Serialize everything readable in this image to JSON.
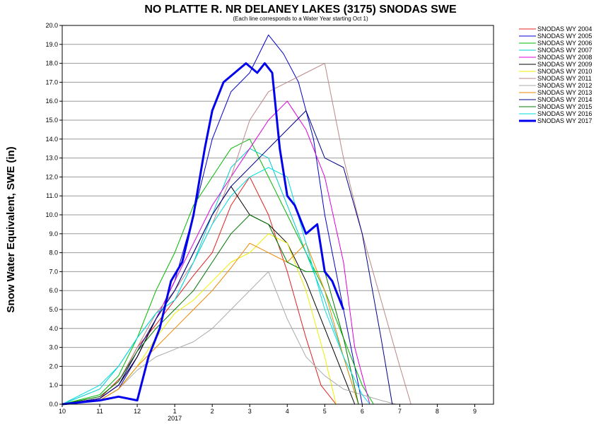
{
  "chart_data": {
    "type": "line",
    "title": "NO PLATTE R. NR DELANEY LAKES (3175) SNODAS SWE",
    "subtitle": "(Each line corresponds to a Water Year starting Oct 1)",
    "ylabel": "Snow Water Equivalent, SWE (in)",
    "xlabel": "",
    "x_unit": "months since Oct 1",
    "xlim": [
      0,
      11.5
    ],
    "ylim": [
      0,
      20
    ],
    "x_ticks": [
      {
        "x": 0,
        "label": "10"
      },
      {
        "x": 1,
        "label": "11"
      },
      {
        "x": 2,
        "label": "12"
      },
      {
        "x": 3,
        "label": "1"
      },
      {
        "x": 4,
        "label": "2"
      },
      {
        "x": 5,
        "label": "3"
      },
      {
        "x": 6,
        "label": "4"
      },
      {
        "x": 7,
        "label": "5"
      },
      {
        "x": 8,
        "label": "6"
      },
      {
        "x": 9,
        "label": "7"
      },
      {
        "x": 10,
        "label": "8"
      },
      {
        "x": 11,
        "label": "9"
      }
    ],
    "x_sublabel": {
      "x": 3,
      "label": "2017"
    },
    "y_ticks": [
      "0.0",
      "1.0",
      "2.0",
      "3.0",
      "4.0",
      "5.0",
      "6.0",
      "7.0",
      "8.0",
      "9.0",
      "10.0",
      "11.0",
      "12.0",
      "13.0",
      "14.0",
      "15.0",
      "16.0",
      "17.0",
      "18.0",
      "19.0",
      "20.0"
    ],
    "grid": true,
    "legend_position": "top-right-outside",
    "series": [
      {
        "name": "SNODAS WY 2004",
        "color": "#e02020",
        "width": 1,
        "x": [
          0.0,
          1.0,
          1.6,
          2.0,
          2.5,
          3.0,
          3.5,
          4.0,
          4.5,
          5.0,
          5.5,
          6.0,
          6.5,
          6.9,
          7.3
        ],
        "y": [
          0.0,
          0.3,
          1.5,
          3.0,
          4.2,
          5.5,
          6.8,
          8.0,
          10.5,
          12.0,
          10.0,
          7.0,
          3.5,
          1.0,
          0.0
        ]
      },
      {
        "name": "SNODAS WY 2005",
        "color": "#0000cc",
        "width": 1,
        "x": [
          0.0,
          1.0,
          1.5,
          2.0,
          2.5,
          3.0,
          3.5,
          4.0,
          4.5,
          5.0,
          5.5,
          5.9,
          6.3,
          6.7,
          7.0,
          7.4,
          7.8,
          8.0
        ],
        "y": [
          0.0,
          0.2,
          0.8,
          2.5,
          4.5,
          6.5,
          10.0,
          14.0,
          16.5,
          17.5,
          19.5,
          18.5,
          17.0,
          14.0,
          10.0,
          6.0,
          2.0,
          0.0
        ]
      },
      {
        "name": "SNODAS WY 2006",
        "color": "#00bb00",
        "width": 1,
        "x": [
          0.0,
          1.0,
          1.5,
          2.0,
          2.5,
          3.0,
          3.5,
          4.0,
          4.5,
          5.0,
          5.5,
          6.0,
          6.5,
          7.0,
          7.5,
          8.0,
          8.3
        ],
        "y": [
          0.0,
          0.5,
          1.5,
          3.5,
          6.0,
          8.0,
          10.5,
          12.0,
          13.5,
          14.0,
          12.0,
          10.0,
          8.0,
          6.0,
          3.5,
          1.0,
          0.0
        ]
      },
      {
        "name": "SNODAS WY 2007",
        "color": "#00cccc",
        "width": 1,
        "x": [
          0.0,
          1.0,
          1.5,
          2.0,
          2.5,
          3.0,
          3.5,
          4.0,
          4.5,
          5.0,
          5.5,
          6.0,
          6.5,
          7.0,
          7.5,
          7.9
        ],
        "y": [
          0.0,
          0.8,
          2.0,
          3.5,
          4.8,
          5.5,
          7.5,
          10.0,
          12.5,
          13.5,
          13.0,
          10.5,
          8.0,
          5.5,
          2.5,
          0.0
        ]
      },
      {
        "name": "SNODAS WY 2008",
        "color": "#dd00dd",
        "width": 1,
        "x": [
          0.0,
          1.0,
          1.5,
          2.0,
          2.5,
          3.0,
          3.5,
          4.0,
          4.5,
          5.0,
          5.5,
          6.0,
          6.5,
          7.0,
          7.5,
          7.8,
          8.2
        ],
        "y": [
          0.0,
          0.3,
          1.0,
          2.5,
          4.5,
          6.5,
          8.5,
          10.5,
          12.0,
          13.5,
          15.0,
          16.0,
          14.5,
          12.0,
          7.5,
          3.0,
          0.0
        ]
      },
      {
        "name": "SNODAS WY 2009",
        "color": "#000000",
        "width": 1,
        "x": [
          0.0,
          1.0,
          1.5,
          2.0,
          2.5,
          3.0,
          3.5,
          4.0,
          4.5,
          5.0,
          5.5,
          6.0,
          6.5,
          7.0,
          7.5,
          7.8
        ],
        "y": [
          0.0,
          0.3,
          1.0,
          2.5,
          4.5,
          6.0,
          8.0,
          10.0,
          11.5,
          10.0,
          9.5,
          8.5,
          6.5,
          4.0,
          1.5,
          0.0
        ]
      },
      {
        "name": "SNODAS WY 2010",
        "color": "#eeee00",
        "width": 1,
        "x": [
          0.0,
          1.0,
          1.5,
          2.0,
          2.5,
          3.0,
          3.5,
          4.0,
          4.5,
          5.0,
          5.5,
          6.0,
          6.5,
          7.0,
          7.3
        ],
        "y": [
          0.0,
          0.2,
          0.8,
          2.0,
          3.5,
          4.8,
          5.5,
          6.5,
          7.5,
          8.0,
          9.0,
          8.5,
          6.0,
          2.5,
          0.0
        ]
      },
      {
        "name": "SNODAS WY 2011",
        "color": "#bb8888",
        "width": 1,
        "x": [
          0.0,
          1.0,
          1.5,
          2.0,
          2.5,
          3.0,
          3.5,
          4.0,
          4.5,
          5.0,
          5.5,
          6.0,
          6.5,
          7.0,
          7.5,
          8.0,
          8.5,
          9.0,
          9.3
        ],
        "y": [
          0.0,
          0.4,
          1.2,
          3.0,
          4.8,
          6.0,
          7.5,
          9.5,
          12.0,
          15.0,
          16.5,
          17.0,
          17.5,
          18.0,
          13.0,
          9.0,
          5.5,
          2.0,
          0.0
        ]
      },
      {
        "name": "SNODAS WY 2012",
        "color": "#aaaaaa",
        "width": 1,
        "x": [
          0.0,
          1.0,
          1.5,
          2.0,
          2.5,
          3.0,
          3.5,
          4.0,
          4.5,
          5.0,
          5.5,
          6.0,
          6.5,
          7.0,
          7.5,
          8.0,
          8.5,
          8.9
        ],
        "y": [
          0.0,
          0.2,
          0.8,
          1.8,
          2.5,
          2.9,
          3.3,
          4.0,
          5.0,
          6.0,
          7.0,
          4.5,
          2.5,
          1.5,
          0.8,
          0.5,
          0.2,
          0.0
        ]
      },
      {
        "name": "SNODAS WY 2013",
        "color": "#ee8800",
        "width": 1,
        "x": [
          0.0,
          1.0,
          1.5,
          2.0,
          2.5,
          3.0,
          3.5,
          4.0,
          4.5,
          5.0,
          5.5,
          6.0,
          6.5,
          7.0,
          7.5,
          7.9
        ],
        "y": [
          0.0,
          0.2,
          0.8,
          2.0,
          3.0,
          4.0,
          5.0,
          6.0,
          7.2,
          8.5,
          8.0,
          7.5,
          8.5,
          6.0,
          2.5,
          0.0
        ]
      },
      {
        "name": "SNODAS WY 2014",
        "color": "#000088",
        "width": 1,
        "x": [
          0.0,
          1.0,
          1.5,
          2.0,
          2.5,
          3.0,
          3.5,
          4.0,
          4.5,
          5.0,
          5.5,
          6.0,
          6.5,
          7.0,
          7.5,
          8.0,
          8.5,
          8.8
        ],
        "y": [
          0.0,
          0.3,
          1.0,
          2.8,
          4.5,
          6.0,
          8.0,
          10.0,
          11.5,
          12.5,
          13.5,
          14.5,
          15.5,
          13.0,
          12.5,
          9.0,
          3.5,
          0.0
        ]
      },
      {
        "name": "SNODAS WY 2015",
        "color": "#007700",
        "width": 1,
        "x": [
          0.0,
          1.0,
          1.5,
          2.0,
          2.5,
          3.0,
          3.5,
          4.0,
          4.5,
          5.0,
          5.5,
          6.0,
          6.5,
          7.0,
          7.5,
          7.9
        ],
        "y": [
          0.0,
          0.4,
          1.2,
          2.8,
          4.0,
          5.0,
          6.0,
          7.5,
          9.0,
          10.0,
          9.5,
          7.5,
          7.0,
          7.0,
          3.5,
          0.0
        ]
      },
      {
        "name": "SNODAS WY 2016",
        "color": "#00dddd",
        "width": 1,
        "x": [
          0.0,
          1.0,
          1.5,
          2.0,
          2.5,
          3.0,
          3.5,
          4.0,
          4.5,
          5.0,
          5.5,
          6.0,
          6.5,
          7.0,
          7.5,
          8.0,
          8.2
        ],
        "y": [
          0.0,
          1.0,
          2.0,
          3.5,
          4.8,
          5.5,
          7.5,
          9.5,
          11.0,
          12.0,
          12.5,
          12.0,
          8.5,
          5.0,
          2.5,
          0.5,
          0.0
        ]
      },
      {
        "name": "SNODAS WY 2017",
        "color": "#0000ee",
        "width": 3,
        "x": [
          0.0,
          1.0,
          1.5,
          2.0,
          2.3,
          2.6,
          2.9,
          3.2,
          3.5,
          3.8,
          4.0,
          4.3,
          4.6,
          4.9,
          5.2,
          5.4,
          5.6,
          5.8,
          6.0,
          6.2,
          6.5,
          6.8,
          7.0,
          7.2,
          7.5
        ],
        "y": [
          0.0,
          0.2,
          0.4,
          0.2,
          2.5,
          4.0,
          6.5,
          7.5,
          10.0,
          13.5,
          15.5,
          17.0,
          17.5,
          18.0,
          17.5,
          18.0,
          17.5,
          13.5,
          11.0,
          10.5,
          9.0,
          9.5,
          7.0,
          6.5,
          5.0
        ]
      }
    ]
  }
}
